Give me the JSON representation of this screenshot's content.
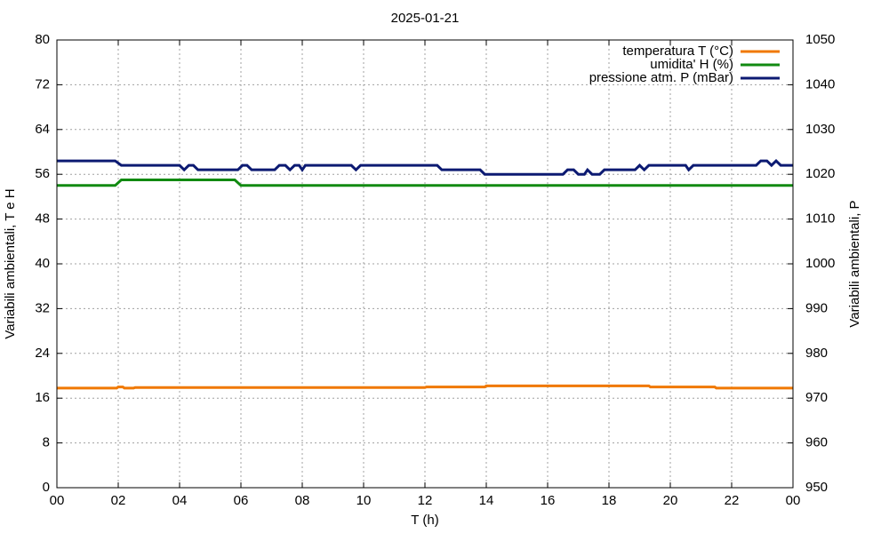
{
  "chart_data": {
    "type": "line",
    "title": "2025-01-21",
    "x_label": "T (h)",
    "y_label": "Variabili ambientali, T e H",
    "y2_label": "Variabili ambientali, P",
    "xlim": [
      0,
      24
    ],
    "xticks": [
      {
        "value": 0,
        "label": "00"
      },
      {
        "value": 2,
        "label": "02"
      },
      {
        "value": 4,
        "label": "04"
      },
      {
        "value": 6,
        "label": "06"
      },
      {
        "value": 8,
        "label": "08"
      },
      10,
      12,
      14,
      16,
      18,
      20,
      22,
      {
        "value": 24,
        "label": "00"
      }
    ],
    "ylim": [
      0,
      80
    ],
    "yticks": [
      0,
      8,
      16,
      24,
      32,
      40,
      48,
      56,
      64,
      72,
      80
    ],
    "y2lim": [
      950,
      1050
    ],
    "y2ticks": [
      950,
      960,
      970,
      980,
      990,
      1000,
      1010,
      1020,
      1030,
      1040,
      1050
    ],
    "grid": true,
    "legend": "top-right",
    "series": [
      {
        "name": "temperatura T (°C)",
        "color": "#f07800",
        "x": [
          0,
          1.95,
          2.0,
          2.15,
          2.2,
          2.5,
          2.55,
          12.0,
          12.05,
          13.95,
          14.0,
          19.3,
          19.35,
          21.45,
          21.5,
          24
        ],
        "values": [
          17.8,
          17.8,
          18.0,
          18.0,
          17.8,
          17.8,
          17.9,
          17.9,
          18.0,
          18.0,
          18.2,
          18.2,
          18.0,
          18.0,
          17.8,
          17.8
        ]
      },
      {
        "name": "umidita' H (%)",
        "color": "#118a11",
        "x": [
          0,
          1.9,
          2.1,
          5.8,
          6.0,
          24
        ],
        "values": [
          54,
          54,
          55,
          55,
          54,
          54
        ]
      },
      {
        "name": "pressione atm. P (mBar)",
        "color": "#0c1a72",
        "axis": "y2",
        "x": [
          0,
          1.9,
          2.1,
          4.0,
          4.15,
          4.3,
          4.45,
          4.6,
          5.9,
          6.05,
          6.2,
          6.35,
          7.1,
          7.25,
          7.45,
          7.6,
          7.75,
          7.9,
          8.0,
          8.1,
          9.6,
          9.75,
          9.9,
          12.4,
          12.55,
          13.8,
          13.95,
          16.5,
          16.65,
          16.85,
          17.0,
          17.2,
          17.3,
          17.45,
          17.7,
          17.85,
          18.85,
          19.0,
          19.15,
          19.3,
          20.5,
          20.6,
          20.75,
          22.8,
          22.95,
          23.15,
          23.3,
          23.45,
          23.6,
          24
        ],
        "values": [
          1023,
          1023,
          1022,
          1022,
          1021,
          1022,
          1022,
          1021,
          1021,
          1022,
          1022,
          1021,
          1021,
          1022,
          1022,
          1021,
          1022,
          1022,
          1021,
          1022,
          1022,
          1021,
          1022,
          1022,
          1021,
          1021,
          1020,
          1020,
          1021,
          1021,
          1020,
          1020,
          1021,
          1020,
          1020,
          1021,
          1021,
          1022,
          1021,
          1022,
          1022,
          1021,
          1022,
          1022,
          1023,
          1023,
          1022,
          1023,
          1022,
          1022
        ]
      }
    ]
  }
}
